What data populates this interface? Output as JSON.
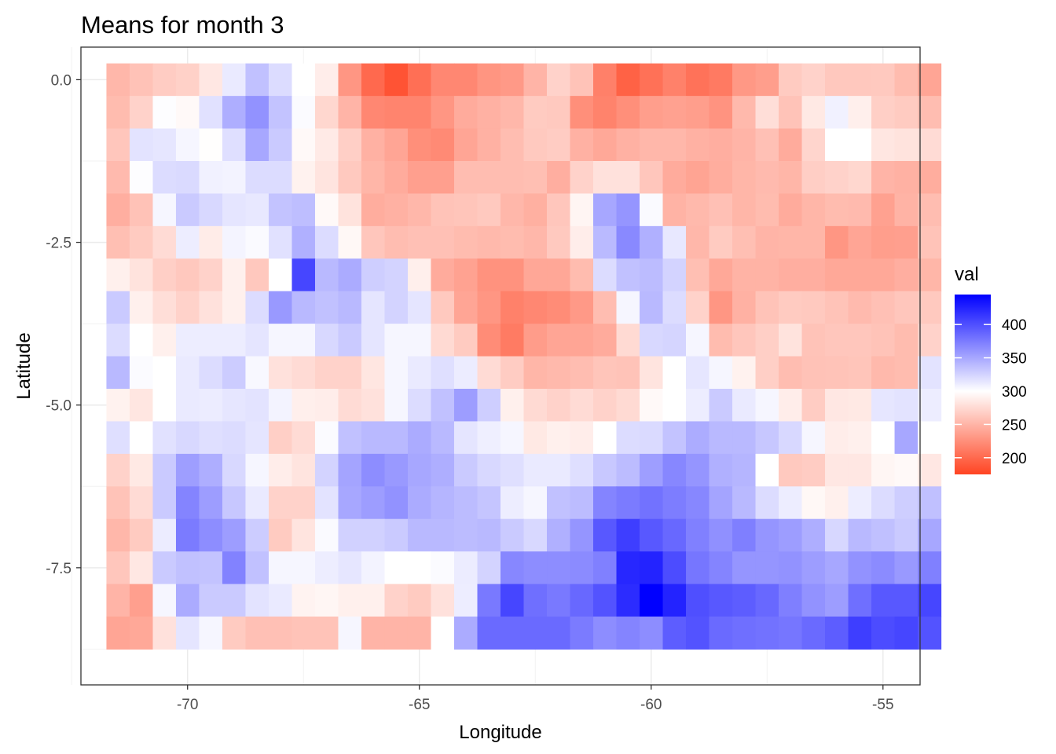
{
  "chart_data": {
    "type": "heatmap",
    "title": "Means for month 3",
    "xlabel": "Longitude",
    "ylabel": "Latitude",
    "legend_title": "val",
    "x_ticks": [
      -70,
      -65,
      -60,
      -55
    ],
    "x_tick_labels": [
      "-70",
      "-65",
      "-60",
      "-55"
    ],
    "y_ticks": [
      0,
      -2.5,
      -5,
      -7.5
    ],
    "y_tick_labels": [
      "0.0",
      "-2.5",
      "-5.0",
      "-7.5"
    ],
    "xlim": [
      -72.3,
      -54.2
    ],
    "ylim": [
      -9.3,
      0.5
    ],
    "legend_breaks": [
      200,
      250,
      300,
      350,
      400
    ],
    "legend_labels": [
      "200",
      "250",
      "300",
      "350",
      "400"
    ],
    "value_range": [
      175,
      445
    ],
    "colors": {
      "low": "#ff4422",
      "mid": "#ffffff",
      "high": "#0000ff",
      "midpoint": 300
    },
    "grid": true,
    "legend_position": "right",
    "x_start": -71.5,
    "x_step": 0.5,
    "y_start": 0,
    "y_step": -0.5,
    "values": [
      [
        252,
        259,
        266,
        269,
        284,
        312,
        335,
        320,
        300,
        288,
        230,
        200,
        185,
        204,
        220,
        220,
        229,
        232,
        250,
        270,
        260,
        215,
        195,
        205,
        216,
        206,
        211,
        231,
        235,
        265,
        270,
        263,
        263,
        264,
        255,
        240
      ],
      [
        255,
        270,
        301,
        296,
        317,
        346,
        362,
        334,
        302,
        273,
        250,
        220,
        218,
        218,
        230,
        244,
        248,
        252,
        265,
        264,
        225,
        217,
        225,
        235,
        237,
        235,
        228,
        253,
        278,
        260,
        285,
        308,
        289,
        268,
        265,
        256
      ],
      [
        262,
        316,
        314,
        305,
        299,
        318,
        350,
        330,
        296,
        286,
        268,
        248,
        240,
        225,
        222,
        240,
        248,
        256,
        264,
        266,
        248,
        242,
        248,
        252,
        252,
        248,
        246,
        250,
        258,
        244,
        272,
        300,
        300,
        283,
        281,
        276
      ],
      [
        254,
        301,
        320,
        321,
        308,
        307,
        320,
        320,
        291,
        282,
        264,
        251,
        244,
        236,
        236,
        256,
        256,
        256,
        257,
        246,
        270,
        280,
        280,
        262,
        244,
        239,
        245,
        251,
        254,
        251,
        267,
        270,
        273,
        250,
        248,
        245
      ],
      [
        246,
        259,
        305,
        330,
        322,
        315,
        313,
        334,
        337,
        296,
        281,
        245,
        248,
        252,
        260,
        261,
        264,
        252,
        247,
        262,
        293,
        350,
        360,
        303,
        249,
        253,
        258,
        251,
        255,
        244,
        251,
        255,
        254,
        237,
        249,
        256
      ],
      [
        257,
        265,
        276,
        310,
        287,
        306,
        303,
        317,
        345,
        320,
        295,
        262,
        256,
        258,
        258,
        255,
        253,
        255,
        252,
        264,
        288,
        339,
        367,
        345,
        313,
        252,
        265,
        257,
        250,
        251,
        251,
        230,
        240,
        235,
        236,
        260
      ],
      [
        290,
        281,
        268,
        263,
        270,
        290,
        263,
        300,
        405,
        340,
        348,
        328,
        325,
        289,
        244,
        238,
        227,
        227,
        241,
        241,
        255,
        320,
        335,
        338,
        325,
        257,
        242,
        249,
        249,
        246,
        246,
        242,
        242,
        242,
        246,
        251
      ],
      [
        330,
        290,
        278,
        270,
        280,
        290,
        320,
        358,
        340,
        335,
        340,
        315,
        325,
        315,
        264,
        240,
        230,
        216,
        220,
        223,
        232,
        256,
        305,
        340,
        320,
        270,
        230,
        248,
        260,
        265,
        264,
        260,
        254,
        258,
        262,
        264
      ],
      [
        320,
        300,
        290,
        310,
        310,
        310,
        315,
        305,
        305,
        322,
        330,
        315,
        305,
        305,
        275,
        265,
        223,
        212,
        234,
        240,
        240,
        244,
        275,
        322,
        324,
        305,
        255,
        262,
        268,
        281,
        260,
        262,
        262,
        260,
        255,
        270
      ],
      [
        340,
        302,
        300,
        312,
        320,
        329,
        304,
        280,
        276,
        270,
        270,
        283,
        305,
        312,
        318,
        311,
        276,
        266,
        251,
        253,
        256,
        261,
        260,
        282,
        300,
        314,
        305,
        291,
        268,
        256,
        259,
        260,
        261,
        253,
        255,
        316
      ],
      [
        291,
        283,
        300,
        312,
        311,
        314,
        316,
        307,
        289,
        288,
        276,
        280,
        305,
        320,
        335,
        356,
        328,
        290,
        275,
        270,
        276,
        270,
        275,
        296,
        300,
        310,
        330,
        312,
        305,
        288,
        266,
        284,
        285,
        314,
        316,
        310
      ],
      [
        318,
        300,
        317,
        322,
        318,
        320,
        315,
        268,
        276,
        302,
        335,
        340,
        340,
        348,
        340,
        315,
        309,
        305,
        285,
        290,
        288,
        300,
        320,
        321,
        334,
        347,
        340,
        340,
        332,
        322,
        305,
        288,
        290,
        300,
        350,
        300
      ],
      [
        270,
        285,
        330,
        355,
        346,
        322,
        305,
        288,
        282,
        325,
        352,
        365,
        358,
        350,
        346,
        330,
        322,
        318,
        312,
        312,
        318,
        331,
        338,
        355,
        368,
        360,
        345,
        342,
        300,
        264,
        266,
        284,
        284,
        294,
        296,
        284
      ],
      [
        260,
        276,
        330,
        370,
        356,
        332,
        312,
        270,
        270,
        316,
        350,
        356,
        362,
        348,
        342,
        338,
        333,
        310,
        305,
        335,
        338,
        370,
        375,
        380,
        374,
        368,
        352,
        340,
        320,
        310,
        295,
        290,
        310,
        320,
        328,
        336
      ],
      [
        252,
        265,
        311,
        375,
        365,
        356,
        329,
        265,
        282,
        303,
        326,
        326,
        330,
        340,
        340,
        338,
        340,
        330,
        322,
        345,
        360,
        395,
        410,
        395,
        386,
        372,
        363,
        373,
        360,
        356,
        346,
        323,
        340,
        336,
        330,
        350
      ],
      [
        262,
        284,
        330,
        335,
        334,
        371,
        335,
        305,
        305,
        310,
        314,
        307,
        300,
        300,
        302,
        311,
        325,
        368,
        365,
        365,
        366,
        372,
        423,
        425,
        402,
        378,
        370,
        360,
        360,
        362,
        356,
        350,
        362,
        366,
        358,
        372
      ],
      [
        250,
        236,
        305,
        348,
        330,
        330,
        316,
        312,
        292,
        294,
        290,
        290,
        270,
        265,
        280,
        310,
        376,
        405,
        382,
        376,
        386,
        398,
        420,
        445,
        425,
        400,
        395,
        392,
        386,
        373,
        362,
        356,
        382,
        395,
        395,
        405
      ],
      [
        240,
        242,
        280,
        315,
        305,
        265,
        258,
        258,
        260,
        260,
        305,
        250,
        250,
        250,
        300,
        348,
        385,
        385,
        385,
        385,
        375,
        365,
        370,
        365,
        392,
        398,
        385,
        382,
        380,
        378,
        385,
        392,
        410,
        402,
        405,
        398
      ]
    ]
  }
}
